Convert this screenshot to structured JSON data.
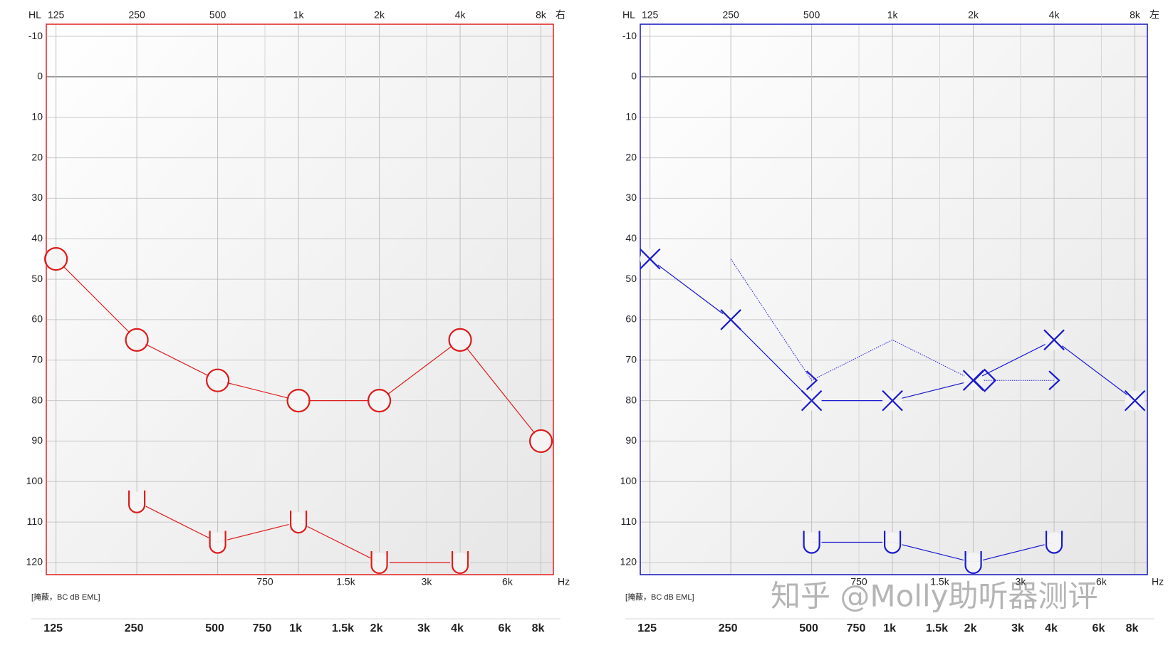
{
  "chart_data": {
    "charts": [
      {
        "type": "line",
        "axis_label_y": "HL",
        "ear": "右",
        "x_unit": "Hz",
        "footnote": "[掩蔽，BC dB EML]",
        "border_color": "#e02020",
        "log_x": true,
        "y_inverted": true,
        "grid": true,
        "xlim": [
          115,
          8900
        ],
        "ylim": [
          -13,
          123
        ],
        "xticks": [
          125,
          250,
          500,
          {
            "value": 1000,
            "label": "1k"
          },
          {
            "value": 2000,
            "label": "2k"
          },
          {
            "value": 4000,
            "label": "4k"
          },
          {
            "value": 8000,
            "label": "8k"
          }
        ],
        "minor_xticks": [
          750,
          {
            "value": 1500,
            "label": "1.5k"
          },
          {
            "value": 3000,
            "label": "3k"
          },
          {
            "value": 6000,
            "label": "6k"
          }
        ],
        "bottom_xticks": [
          125,
          250,
          500,
          750,
          {
            "value": 1000,
            "label": "1k"
          },
          {
            "value": 1500,
            "label": "1.5k"
          },
          {
            "value": 2000,
            "label": "2k"
          },
          {
            "value": 3000,
            "label": "3k"
          },
          {
            "value": 4000,
            "label": "4k"
          },
          {
            "value": 6000,
            "label": "6k"
          },
          {
            "value": 8000,
            "label": "8k"
          }
        ],
        "yticks": [
          -10,
          0,
          10,
          20,
          30,
          40,
          50,
          60,
          70,
          80,
          90,
          100,
          110,
          120
        ],
        "x": [
          125,
          250,
          500,
          1000,
          2000,
          4000,
          8000
        ],
        "series": [
          {
            "color": "#dd1c1c",
            "marker": "circle",
            "line": "solid",
            "values": [
              45,
              65,
              75,
              80,
              80,
              65,
              90
            ]
          },
          {
            "color": "#dd1c1c",
            "marker": "U",
            "line": "solid",
            "values": [
              null,
              105,
              115,
              110,
              120,
              120,
              null
            ]
          }
        ]
      },
      {
        "type": "line",
        "axis_label_y": "HL",
        "ear": "左",
        "x_unit": "Hz",
        "footnote": "[掩蔽，BC dB EML]",
        "border_color": "#1414c0",
        "log_x": true,
        "y_inverted": true,
        "grid": true,
        "xlim": [
          115,
          8900
        ],
        "ylim": [
          -13,
          123
        ],
        "xticks": [
          125,
          250,
          500,
          {
            "value": 1000,
            "label": "1k"
          },
          {
            "value": 2000,
            "label": "2k"
          },
          {
            "value": 4000,
            "label": "4k"
          },
          {
            "value": 8000,
            "label": "8k"
          }
        ],
        "minor_xticks": [
          750,
          {
            "value": 1500,
            "label": "1.5k"
          },
          {
            "value": 3000,
            "label": "3k"
          },
          {
            "value": 6000,
            "label": "6k"
          }
        ],
        "bottom_xticks": [
          125,
          250,
          500,
          750,
          {
            "value": 1000,
            "label": "1k"
          },
          {
            "value": 1500,
            "label": "1.5k"
          },
          {
            "value": 2000,
            "label": "2k"
          },
          {
            "value": 3000,
            "label": "3k"
          },
          {
            "value": 4000,
            "label": "4k"
          },
          {
            "value": 6000,
            "label": "6k"
          },
          {
            "value": 8000,
            "label": "8k"
          }
        ],
        "yticks": [
          -10,
          0,
          10,
          20,
          30,
          40,
          50,
          60,
          70,
          80,
          90,
          100,
          110,
          120
        ],
        "x": [
          125,
          250,
          500,
          1000,
          2000,
          4000,
          8000
        ],
        "series": [
          {
            "color": "#1a1ad0",
            "marker": "x",
            "line": "solid",
            "values": [
              45,
              60,
              80,
              80,
              75,
              65,
              80
            ]
          },
          {
            "color": "#1a1ad0",
            "marker": [
              null,
              null,
              ">",
              null,
              "diamond",
              ">",
              null
            ],
            "line": "dotted",
            "values": [
              null,
              45,
              75,
              65,
              75,
              75,
              null
            ]
          },
          {
            "color": "#1a1ad0",
            "marker": "U",
            "line": "solid",
            "values": [
              null,
              null,
              115,
              115,
              120,
              115,
              null
            ]
          }
        ]
      }
    ]
  },
  "watermark": "知乎 @Molly助听器测评"
}
